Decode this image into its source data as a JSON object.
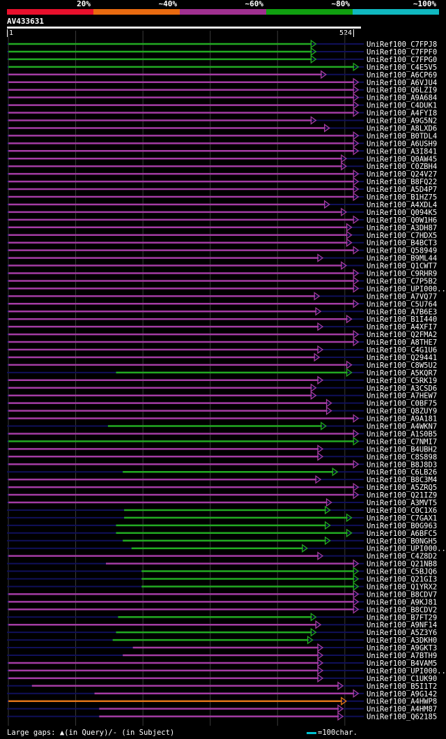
{
  "legend": {
    "segments": [
      {
        "label": "20%",
        "color": "#e8102c"
      },
      {
        "label": "~40%",
        "color": "#e86a10"
      },
      {
        "label": "~60%",
        "color": "#a03090"
      },
      {
        "label": "~80%",
        "color": "#10a010"
      },
      {
        "label": "~100%",
        "color": "#10b8c0"
      }
    ]
  },
  "query": {
    "id": "AV433631",
    "start": "1",
    "end": "524",
    "length": 524
  },
  "colors": {
    "green": "#22aa22",
    "magenta": "#a43ca4",
    "orange": "#e07418",
    "navy": "#10105a",
    "gap_marker": "#ffff99",
    "grid": "#3a3a3a"
  },
  "hits": [
    {
      "name": "UniRef100_C7FPJ8",
      "color": "green",
      "start": 0,
      "end": 455
    },
    {
      "name": "UniRef100_C7FPF0",
      "color": "green",
      "start": 0,
      "end": 455
    },
    {
      "name": "UniRef100_C7FPG0",
      "color": "green",
      "start": 0,
      "end": 455
    },
    {
      "name": "UniRef100_C4E5V5",
      "color": "green",
      "start": 0,
      "end": 518
    },
    {
      "name": "UniRef100_A6CP69",
      "color": "magenta",
      "start": 0,
      "end": 470
    },
    {
      "name": "UniRef100_A6VJU4",
      "color": "magenta",
      "start": 0,
      "end": 518
    },
    {
      "name": "UniRef100_Q6LZI9",
      "color": "magenta",
      "start": 0,
      "end": 518
    },
    {
      "name": "UniRef100_A9A684",
      "color": "magenta",
      "start": 0,
      "end": 518
    },
    {
      "name": "UniRef100_C4DUK1",
      "color": "magenta",
      "start": 0,
      "end": 518
    },
    {
      "name": "UniRef100_A4FYI8",
      "color": "magenta",
      "start": 0,
      "end": 518
    },
    {
      "name": "UniRef100_A9G5N2",
      "color": "magenta",
      "start": 0,
      "end": 455
    },
    {
      "name": "UniRef100_A8LXD6",
      "color": "magenta",
      "start": 0,
      "end": 475
    },
    {
      "name": "UniRef100_B0TDL4",
      "color": "magenta",
      "start": 0,
      "end": 518
    },
    {
      "name": "UniRef100_A6USH9",
      "color": "magenta",
      "start": 0,
      "end": 518
    },
    {
      "name": "UniRef100_A3I841",
      "color": "magenta",
      "start": 0,
      "end": 518
    },
    {
      "name": "UniRef100_Q0AW45",
      "color": "magenta",
      "start": 0,
      "end": 500
    },
    {
      "name": "UniRef100_C0ZBH4",
      "color": "magenta",
      "start": 0,
      "end": 500
    },
    {
      "name": "UniRef100_Q24V27",
      "color": "magenta",
      "start": 0,
      "end": 518
    },
    {
      "name": "UniRef100_B8FQ22",
      "color": "magenta",
      "start": 0,
      "end": 518
    },
    {
      "name": "UniRef100_A5D4P7",
      "color": "magenta",
      "start": 0,
      "end": 518
    },
    {
      "name": "UniRef100_B1HZ75",
      "color": "magenta",
      "start": 0,
      "end": 518
    },
    {
      "name": "UniRef100_A4XDL4",
      "color": "magenta",
      "start": 0,
      "end": 475
    },
    {
      "name": "UniRef100_Q094K5",
      "color": "magenta",
      "start": 0,
      "end": 500
    },
    {
      "name": "UniRef100_Q0W1H6",
      "color": "magenta",
      "start": 0,
      "end": 518
    },
    {
      "name": "UniRef100_A3DH87",
      "color": "magenta",
      "start": 0,
      "end": 508
    },
    {
      "name": "UniRef100_C7HDX5",
      "color": "magenta",
      "start": 0,
      "end": 508
    },
    {
      "name": "UniRef100_B4BCT3",
      "color": "magenta",
      "start": 0,
      "end": 508
    },
    {
      "name": "UniRef100_Q58949",
      "color": "magenta",
      "start": 0,
      "end": 518
    },
    {
      "name": "UniRef100_B9ML44",
      "color": "magenta",
      "start": 0,
      "end": 465
    },
    {
      "name": "UniRef100_Q1CWT7",
      "color": "magenta",
      "start": 0,
      "end": 500
    },
    {
      "name": "UniRef100_C9RHR9",
      "color": "magenta",
      "start": 0,
      "end": 518
    },
    {
      "name": "UniRef100_C7P5B2",
      "color": "magenta",
      "start": 0,
      "end": 518
    },
    {
      "name": "UniRef100_UPI000...",
      "color": "magenta",
      "start": 0,
      "end": 518
    },
    {
      "name": "UniRef100_A7VQ77",
      "color": "magenta",
      "start": 0,
      "end": 460
    },
    {
      "name": "UniRef100_C5U764",
      "color": "magenta",
      "start": 0,
      "end": 518
    },
    {
      "name": "UniRef100_A7B6E3",
      "color": "magenta",
      "start": 0,
      "end": 462
    },
    {
      "name": "UniRef100_B1I440",
      "color": "magenta",
      "start": 0,
      "end": 508
    },
    {
      "name": "UniRef100_A4XFI7",
      "color": "magenta",
      "start": 0,
      "end": 465
    },
    {
      "name": "UniRef100_Q2FMA2",
      "color": "magenta",
      "start": 0,
      "end": 518
    },
    {
      "name": "UniRef100_A8THE7",
      "color": "magenta",
      "start": 0,
      "end": 518
    },
    {
      "name": "UniRef100_C4G1U6",
      "color": "magenta",
      "start": 0,
      "end": 465
    },
    {
      "name": "UniRef100_Q29441",
      "color": "magenta",
      "start": 0,
      "end": 460
    },
    {
      "name": "UniRef100_C8W5U2",
      "color": "magenta",
      "start": 0,
      "end": 508
    },
    {
      "name": "UniRef100_A5KQR7",
      "color": "green",
      "start": 160,
      "end": 508
    },
    {
      "name": "UniRef100_C5RK19",
      "color": "magenta",
      "start": 0,
      "end": 465
    },
    {
      "name": "UniRef100_A3CSD6",
      "color": "magenta",
      "start": 0,
      "end": 455
    },
    {
      "name": "UniRef100_A7HEW7",
      "color": "magenta",
      "start": 0,
      "end": 455
    },
    {
      "name": "UniRef100_C0BF75",
      "color": "magenta",
      "start": 0,
      "end": 478
    },
    {
      "name": "UniRef100_Q8ZUY9",
      "color": "magenta",
      "start": 0,
      "end": 478
    },
    {
      "name": "UniRef100_A9A181",
      "color": "magenta",
      "start": 0,
      "end": 518
    },
    {
      "name": "UniRef100_A4WKN7",
      "color": "green",
      "start": 148,
      "end": 470
    },
    {
      "name": "UniRef100_A1S0B5",
      "color": "magenta",
      "start": 0,
      "end": 518
    },
    {
      "name": "UniRef100_C7NMI7",
      "color": "green",
      "start": 0,
      "end": 518
    },
    {
      "name": "UniRef100_B4UBH2",
      "color": "magenta",
      "start": 0,
      "end": 465
    },
    {
      "name": "UniRef100_C8S898",
      "color": "magenta",
      "start": 0,
      "end": 465
    },
    {
      "name": "UniRef100_B8J8D3",
      "color": "magenta",
      "start": 0,
      "end": 518
    },
    {
      "name": "UniRef100_C6LB26",
      "color": "green",
      "start": 170,
      "end": 487
    },
    {
      "name": "UniRef100_B8C3M4",
      "color": "magenta",
      "start": 0,
      "end": 462
    },
    {
      "name": "UniRef100_A5ZRQ5",
      "color": "magenta",
      "start": 0,
      "end": 518
    },
    {
      "name": "UniRef100_Q21IZ9",
      "color": "magenta",
      "start": 0,
      "end": 518
    },
    {
      "name": "UniRef100_A3MVT5",
      "color": "magenta",
      "start": 0,
      "end": 478
    },
    {
      "name": "UniRef100_C0C1X6",
      "color": "green",
      "start": 172,
      "end": 476
    },
    {
      "name": "UniRef100_C7GAX1",
      "color": "green",
      "start": 172,
      "end": 508
    },
    {
      "name": "UniRef100_B0G963",
      "color": "green",
      "start": 160,
      "end": 476
    },
    {
      "name": "UniRef100_A6BFC5",
      "color": "green",
      "start": 160,
      "end": 508
    },
    {
      "name": "UniRef100_B0NGH5",
      "color": "green",
      "start": 170,
      "end": 476
    },
    {
      "name": "UniRef100_UPI000...",
      "color": "green",
      "start": 183,
      "end": 442
    },
    {
      "name": "UniRef100_C4Z8D2",
      "color": "magenta",
      "start": 0,
      "end": 465
    },
    {
      "name": "UniRef100_Q21NB8",
      "color": "magenta",
      "start": 145,
      "end": 518
    },
    {
      "name": "UniRef100_C5BJQ6",
      "color": "green",
      "start": 198,
      "end": 518
    },
    {
      "name": "UniRef100_Q21GI3",
      "color": "green",
      "start": 198,
      "end": 518
    },
    {
      "name": "UniRef100_Q1YRX2",
      "color": "green",
      "start": 198,
      "end": 518
    },
    {
      "name": "UniRef100_B8CDV7",
      "color": "magenta",
      "start": 0,
      "end": 518
    },
    {
      "name": "UniRef100_A9KJ81",
      "color": "magenta",
      "start": 0,
      "end": 518
    },
    {
      "name": "UniRef100_B8CDV2",
      "color": "magenta",
      "start": 0,
      "end": 518
    },
    {
      "name": "UniRef100_B7FT29",
      "color": "green",
      "start": 163,
      "end": 455
    },
    {
      "name": "UniRef100_A9NF14",
      "color": "magenta",
      "start": 0,
      "end": 462
    },
    {
      "name": "UniRef100_A5Z3Y6",
      "color": "green",
      "start": 160,
      "end": 455
    },
    {
      "name": "UniRef100_A3DKH0",
      "color": "green",
      "start": 155,
      "end": 450
    },
    {
      "name": "UniRef100_A9GKT3",
      "color": "magenta",
      "start": 185,
      "end": 465
    },
    {
      "name": "UniRef100_A7BTH9",
      "color": "magenta",
      "start": 170,
      "end": 465
    },
    {
      "name": "UniRef100_B4VAM5",
      "color": "magenta",
      "start": 0,
      "end": 465
    },
    {
      "name": "UniRef100_UPI000...",
      "color": "magenta",
      "start": 0,
      "end": 465
    },
    {
      "name": "UniRef100_C1UK90",
      "color": "magenta",
      "start": 0,
      "end": 465
    },
    {
      "name": "UniRef100_B5I1T2",
      "color": "magenta",
      "start": 35,
      "end": 495
    },
    {
      "name": "UniRef100_A9G142",
      "color": "magenta",
      "start": 128,
      "end": 518
    },
    {
      "name": "UniRef100_A4HWP8",
      "color": "orange",
      "start": 0,
      "end": 500
    },
    {
      "name": "UniRef100_A4HM87",
      "color": "magenta",
      "start": 135,
      "end": 495
    },
    {
      "name": "UniRef100_Q62185",
      "color": "magenta",
      "start": 135,
      "end": 495
    }
  ],
  "footer": {
    "gaps_label": "Large gaps:",
    "gaps_query": "▲(in Query)/- (in Subject)",
    "scale_label": "=100char."
  }
}
